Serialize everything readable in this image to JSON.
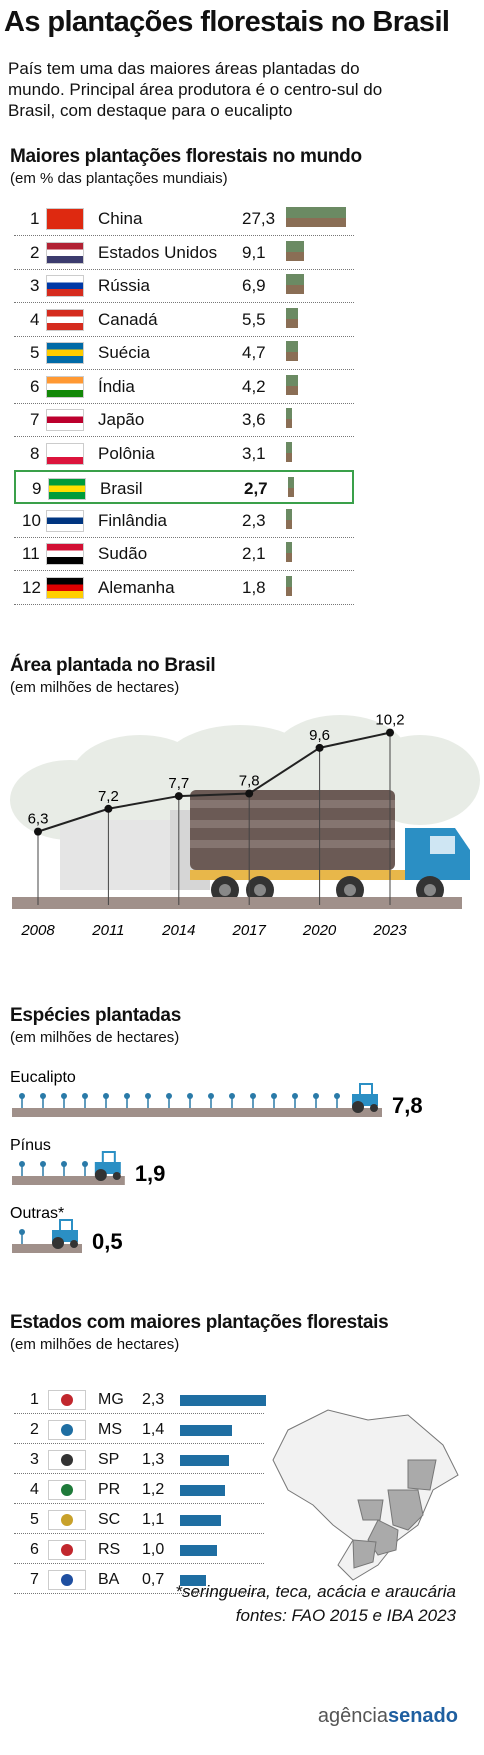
{
  "title": "As plantações florestais no Brasil",
  "subtitle": "País tem uma das maiores áreas plantadas do mundo. Principal área produtora é o centro-sul do Brasil, com destaque para o eucalipto",
  "world": {
    "title": "Maiores plantações florestais no mundo",
    "subtitle": "(em % das plantações mundiais)",
    "rows": [
      {
        "rank": "1",
        "country": "China",
        "value": "27,3",
        "num": 27.3
      },
      {
        "rank": "2",
        "country": "Estados Unidos",
        "value": "9,1",
        "num": 9.1
      },
      {
        "rank": "3",
        "country": "Rússia",
        "value": "6,9",
        "num": 6.9
      },
      {
        "rank": "4",
        "country": "Canadá",
        "value": "5,5",
        "num": 5.5
      },
      {
        "rank": "5",
        "country": "Suécia",
        "value": "4,7",
        "num": 4.7
      },
      {
        "rank": "6",
        "country": "Índia",
        "value": "4,2",
        "num": 4.2
      },
      {
        "rank": "7",
        "country": "Japão",
        "value": "3,6",
        "num": 3.6
      },
      {
        "rank": "8",
        "country": "Polônia",
        "value": "3,1",
        "num": 3.1
      },
      {
        "rank": "9",
        "country": "Brasil",
        "value": "2,7",
        "num": 2.7
      },
      {
        "rank": "10",
        "country": "Finlândia",
        "value": "2,3",
        "num": 2.3
      },
      {
        "rank": "11",
        "country": "Sudão",
        "value": "2,1",
        "num": 2.1
      },
      {
        "rank": "12",
        "country": "Alemanha",
        "value": "1,8",
        "num": 1.8
      }
    ]
  },
  "area": {
    "title": "Área plantada no Brasil",
    "subtitle": "(em milhões de hectares)",
    "points": [
      {
        "year": "2008",
        "label": "6,3",
        "value": 6.3
      },
      {
        "year": "2011",
        "label": "7,2",
        "value": 7.2
      },
      {
        "year": "2014",
        "label": "7,7",
        "value": 7.7
      },
      {
        "year": "2017",
        "label": "7,8",
        "value": 7.8
      },
      {
        "year": "2020",
        "label": "9,6",
        "value": 9.6
      },
      {
        "year": "2023",
        "label": "10,2",
        "value": 10.2
      }
    ]
  },
  "species": {
    "title": "Espécies plantadas",
    "subtitle": "(em milhões de hectares)",
    "items": [
      {
        "label": "Eucalipto",
        "value": "7,8",
        "num": 7.8
      },
      {
        "label": "Pínus",
        "value": "1,9",
        "num": 1.9
      },
      {
        "label": "Outras*",
        "value": "0,5",
        "num": 0.5
      }
    ]
  },
  "states": {
    "title": "Estados com maiores plantações florestais",
    "subtitle": "(em milhões de hectares)",
    "rows": [
      {
        "rank": "1",
        "uf": "MG",
        "value": "2,3",
        "num": 2.3
      },
      {
        "rank": "2",
        "uf": "MS",
        "value": "1,4",
        "num": 1.4
      },
      {
        "rank": "3",
        "uf": "SP",
        "value": "1,3",
        "num": 1.3
      },
      {
        "rank": "4",
        "uf": "PR",
        "value": "1,2",
        "num": 1.2
      },
      {
        "rank": "5",
        "uf": "SC",
        "value": "1,1",
        "num": 1.1
      },
      {
        "rank": "6",
        "uf": "RS",
        "value": "1,0",
        "num": 1.0
      },
      {
        "rank": "7",
        "uf": "BA",
        "value": "0,7",
        "num": 0.7
      }
    ]
  },
  "footnote": "*seringueira, teca, acácia e araucária",
  "sources": "fontes: FAO 2015 e IBA 2023",
  "logo": {
    "part1": "agência",
    "part2": "senado"
  },
  "colors": {
    "bar": "#1f6ea2",
    "highlight": "#3aa04a",
    "truck": "#2b8fc4",
    "ground": "#a0908a",
    "tree": "#6b8a63"
  },
  "chart_data": [
    {
      "type": "table",
      "title": "Maiores plantações florestais no mundo",
      "subtitle": "(em % das plantações mundiais)",
      "categories": [
        "China",
        "Estados Unidos",
        "Rússia",
        "Canadá",
        "Suécia",
        "Índia",
        "Japão",
        "Polônia",
        "Brasil",
        "Finlândia",
        "Sudão",
        "Alemanha"
      ],
      "values": [
        27.3,
        9.1,
        6.9,
        5.5,
        4.7,
        4.2,
        3.6,
        3.1,
        2.7,
        2.3,
        2.1,
        1.8
      ]
    },
    {
      "type": "line",
      "title": "Área plantada no Brasil",
      "subtitle": "(em milhões de hectares)",
      "x": [
        "2008",
        "2011",
        "2014",
        "2017",
        "2020",
        "2023"
      ],
      "y": [
        6.3,
        7.2,
        7.7,
        7.8,
        9.6,
        10.2
      ]
    },
    {
      "type": "bar",
      "title": "Espécies plantadas",
      "subtitle": "(em milhões de hectares)",
      "categories": [
        "Eucalipto",
        "Pínus",
        "Outras*"
      ],
      "values": [
        7.8,
        1.9,
        0.5
      ]
    },
    {
      "type": "bar",
      "title": "Estados com maiores plantações florestais",
      "subtitle": "(em milhões de hectares)",
      "categories": [
        "MG",
        "MS",
        "SP",
        "PR",
        "SC",
        "RS",
        "BA"
      ],
      "values": [
        2.3,
        1.4,
        1.3,
        1.2,
        1.1,
        1.0,
        0.7
      ]
    }
  ]
}
